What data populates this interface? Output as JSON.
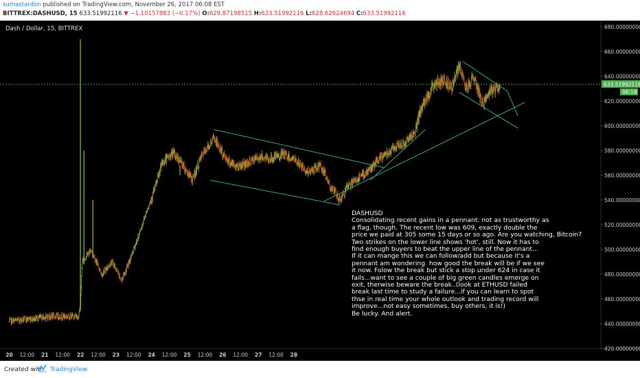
{
  "header": {
    "user": "sumastardon",
    "published": "published on TradingView.com, November 26, 2017 06:08 EST",
    "symbol": "BITTREX:DASHUSD, 15",
    "last": "633.51992116",
    "change": "▼ −1.10157883 (−0.17%)",
    "o_label": "O:",
    "o_value": "629.87198515",
    "h_label": "H:",
    "h_value": "633.51992116",
    "l_label": "L:",
    "l_value": "628.62624694",
    "c_label": "C:",
    "c_value": "633.51992116"
  },
  "pane": {
    "title": "Dash / Dollar, 15, BITTREX"
  },
  "annotation": {
    "title": "DASHUSD",
    "body": "Consolidating recent gains in a pennant: not as trustworthy as\na flag, though. The recent low was 609, exactly double the\nprice we paid at 305 some 15 days or so ago. Are you watching, Bitcoin?\nTwo strikes on the lower line shows 'hot', still. Now it has to\nfind enough buyers to beat the upper line of the pennant...\nIf it can mange this we can follow/add but because it's a\npennant am wondering  how good the break will be if we see\nit now. Folow the break but stick a stop under 624 in case it\nfails...want to see a couple of big green candles emerge on\nexit, therwise beware the break..(look at ETHUSD failed\nbreak last time to study a failure...if you can learn to spot\nthse in real time your whole outlook and trading record will\nimprove...not easy sometimes, buy others, it is!)\nBe lucky. And alert."
  },
  "price_tag": {
    "value": "633.51992116",
    "countdown": "06:18"
  },
  "footer": {
    "created": "Created with",
    "brand": "TradingView"
  },
  "colors": {
    "up": "#8bc34a",
    "down": "#d84315",
    "trend": "#3aa88a",
    "price_line": "#4caf50",
    "axis_text": "#cfcfcf"
  },
  "chart_data": {
    "type": "candlestick",
    "title": "Dash / Dollar, 15, BITTREX",
    "ylim": [
      420,
      685
    ],
    "y_ticks": [
      {
        "value": 680,
        "label": "680.00000000"
      },
      {
        "value": 660,
        "label": "660.00000000"
      },
      {
        "value": 640,
        "label": "640.00000000"
      },
      {
        "value": 620,
        "label": "620.00000000"
      },
      {
        "value": 600,
        "label": "600.00000000"
      },
      {
        "value": 580,
        "label": "580.00000000"
      },
      {
        "value": 560,
        "label": "560.00000000"
      },
      {
        "value": 540,
        "label": "540.00000000"
      },
      {
        "value": 520,
        "label": "520.00000000"
      },
      {
        "value": 500,
        "label": "500.00000000"
      },
      {
        "value": 480,
        "label": "480.00000000"
      },
      {
        "value": 460,
        "label": "460.00000000"
      },
      {
        "value": 440,
        "label": "440.00000000"
      },
      {
        "value": 420,
        "label": "420.00000000"
      }
    ],
    "x_ticks": [
      "20",
      "12:00",
      "21",
      "12:00",
      "22",
      "12:00",
      "23",
      "12:00",
      "24",
      "12:00",
      "25",
      "12:00",
      "26",
      "12:00",
      "27",
      "12:00",
      "28"
    ],
    "x_range": [
      0,
      16.75
    ],
    "anchors": [
      [
        0.0,
        442
      ],
      [
        1.2,
        446
      ],
      [
        1.95,
        446
      ],
      [
        2.0,
        455
      ],
      [
        2.05,
        490
      ],
      [
        2.3,
        500
      ],
      [
        2.6,
        480
      ],
      [
        2.9,
        490
      ],
      [
        3.15,
        475
      ],
      [
        3.35,
        488
      ],
      [
        3.6,
        508
      ],
      [
        3.85,
        530
      ],
      [
        4.1,
        550
      ],
      [
        4.3,
        570
      ],
      [
        4.6,
        578
      ],
      [
        4.8,
        572
      ],
      [
        5.15,
        556
      ],
      [
        5.4,
        575
      ],
      [
        5.75,
        590
      ],
      [
        6.05,
        575
      ],
      [
        6.35,
        567
      ],
      [
        6.7,
        570
      ],
      [
        7.05,
        575
      ],
      [
        7.35,
        573
      ],
      [
        7.7,
        577
      ],
      [
        8.05,
        572
      ],
      [
        8.4,
        562
      ],
      [
        8.75,
        568
      ],
      [
        9.05,
        550
      ],
      [
        9.3,
        540
      ],
      [
        9.55,
        552
      ],
      [
        9.85,
        558
      ],
      [
        10.15,
        565
      ],
      [
        10.55,
        577
      ],
      [
        10.8,
        582
      ],
      [
        11.1,
        586
      ],
      [
        11.4,
        595
      ],
      [
        11.6,
        615
      ],
      [
        11.9,
        632
      ],
      [
        12.2,
        637
      ],
      [
        12.45,
        632
      ],
      [
        12.65,
        648
      ],
      [
        12.85,
        630
      ],
      [
        13.05,
        640
      ],
      [
        13.3,
        618
      ],
      [
        13.55,
        628
      ],
      [
        13.8,
        632
      ]
    ],
    "spikes": [
      {
        "x": 2.0,
        "high": 670
      },
      {
        "x": 2.1,
        "high": 580
      },
      {
        "x": 2.35,
        "high": 540
      },
      {
        "x": 4.8,
        "high": 560
      }
    ],
    "last_price": 633.51992116,
    "trendlines": [
      {
        "from": [
          5.75,
          597
        ],
        "to": [
          10.55,
          566
        ]
      },
      {
        "from": [
          5.65,
          556
        ],
        "to": [
          9.3,
          536
        ]
      },
      {
        "from": [
          8.85,
          539
        ],
        "to": [
          14.5,
          619
        ]
      },
      {
        "from": [
          10.15,
          556
        ],
        "to": [
          11.7,
          597
        ]
      },
      {
        "from": [
          12.75,
          652
        ],
        "to": [
          14.0,
          628
        ]
      },
      {
        "from": [
          12.65,
          627
        ],
        "to": [
          14.3,
          598
        ]
      },
      {
        "from": [
          14.0,
          628
        ],
        "to": [
          14.3,
          608
        ]
      }
    ]
  }
}
